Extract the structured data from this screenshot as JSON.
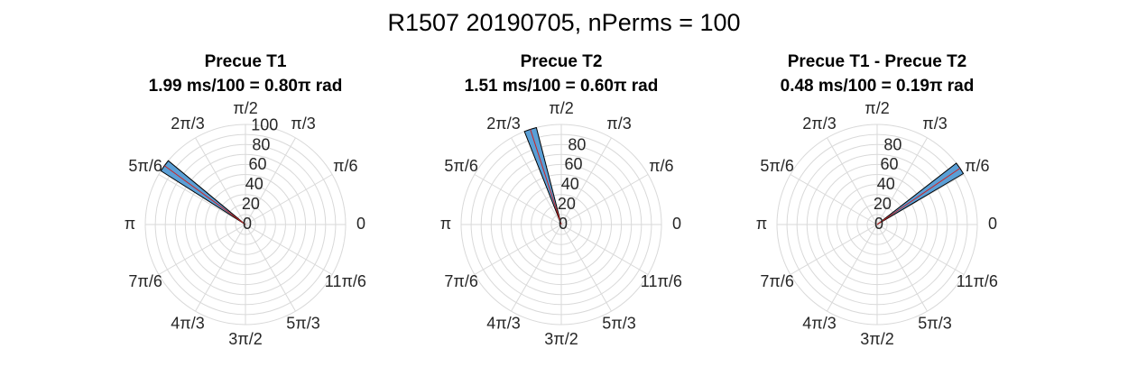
{
  "figure": {
    "title": "R1507 20190705, nPerms = 100"
  },
  "chart_data": [
    {
      "type": "polar-histogram",
      "title": [
        "Precue T1",
        "1.99 ms/100 = 0.80π rad"
      ],
      "rlim": [
        0,
        100
      ],
      "r_ticks": [
        "0",
        "20",
        "40",
        "60",
        "80",
        "100"
      ],
      "theta_ticks": [
        "0",
        "π/6",
        "π/3",
        "π/2",
        "2π/3",
        "5π/6",
        "π",
        "7π/6",
        "4π/3",
        "3π/2",
        "5π/3",
        "11π/6"
      ],
      "bins": [
        {
          "theta_center_pi": 0.8,
          "width_pi": 0.04,
          "count": 100
        }
      ],
      "mean_vector": {
        "theta_pi": 0.8,
        "r": 100
      }
    },
    {
      "type": "polar-histogram",
      "title": [
        "Precue T2",
        "1.51 ms/100 = 0.60π rad"
      ],
      "rlim": [
        0,
        100
      ],
      "r_ticks": [
        "0",
        "20",
        "40",
        "60",
        "80"
      ],
      "theta_ticks": [
        "0",
        "π/6",
        "π/3",
        "π/2",
        "2π/3",
        "5π/6",
        "π",
        "7π/6",
        "4π/3",
        "3π/2",
        "5π/3",
        "11π/6"
      ],
      "bins": [
        {
          "theta_center_pi": 0.6,
          "width_pi": 0.04,
          "count": 100
        }
      ],
      "mean_vector": {
        "theta_pi": 0.6,
        "r": 100
      }
    },
    {
      "type": "polar-histogram",
      "title": [
        "Precue T1 - Precue T2",
        "0.48 ms/100 = 0.19π rad"
      ],
      "rlim": [
        0,
        100
      ],
      "r_ticks": [
        "0",
        "20",
        "40",
        "60",
        "80"
      ],
      "theta_ticks": [
        "0",
        "π/6",
        "π/3",
        "π/2",
        "2π/3",
        "5π/6",
        "π",
        "7π/6",
        "4π/3",
        "3π/2",
        "5π/3",
        "11π/6"
      ],
      "bins": [
        {
          "theta_center_pi": 0.19,
          "width_pi": 0.04,
          "count": 100
        }
      ],
      "mean_vector": {
        "theta_pi": 0.19,
        "r": 100
      }
    }
  ],
  "colors": {
    "bar_fill": "#5a9fd6",
    "bar_edge": "#000000",
    "grid": "#d9d9d9",
    "mean_line": "#cc2222"
  }
}
